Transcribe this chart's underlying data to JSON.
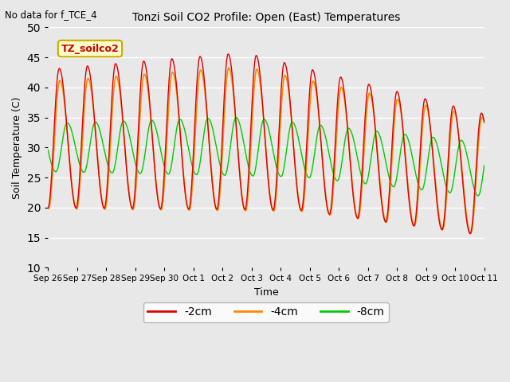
{
  "title": "Tonzi Soil CO2 Profile: Open (East) Temperatures",
  "subtitle": "No data for f_TCE_4",
  "xlabel": "Time",
  "ylabel": "Soil Temperature (C)",
  "ylim": [
    10,
    50
  ],
  "yticks": [
    10,
    15,
    20,
    25,
    30,
    35,
    40,
    45,
    50
  ],
  "fig_bg_color": "#e8e8e8",
  "plot_bg_color": "#e8e8e8",
  "grid_color": "#ffffff",
  "legend_box_label": "TZ_soilco2",
  "legend_box_facecolor": "#ffffcc",
  "legend_box_edgecolor": "#ccaa00",
  "line_colors": {
    "-2cm": "#dd0000",
    "-4cm": "#ff8800",
    "-8cm": "#00cc00"
  },
  "x_tick_labels": [
    "Sep 26",
    "Sep 27",
    "Sep 28",
    "Sep 29",
    "Sep 30",
    "Oct 1",
    "Oct 2",
    "Oct 3",
    "Oct 4",
    "Oct 5",
    "Oct 6",
    "Oct 7",
    "Oct 8",
    "Oct 9",
    "Oct 10",
    "Oct 11"
  ],
  "n_days": 15.5
}
